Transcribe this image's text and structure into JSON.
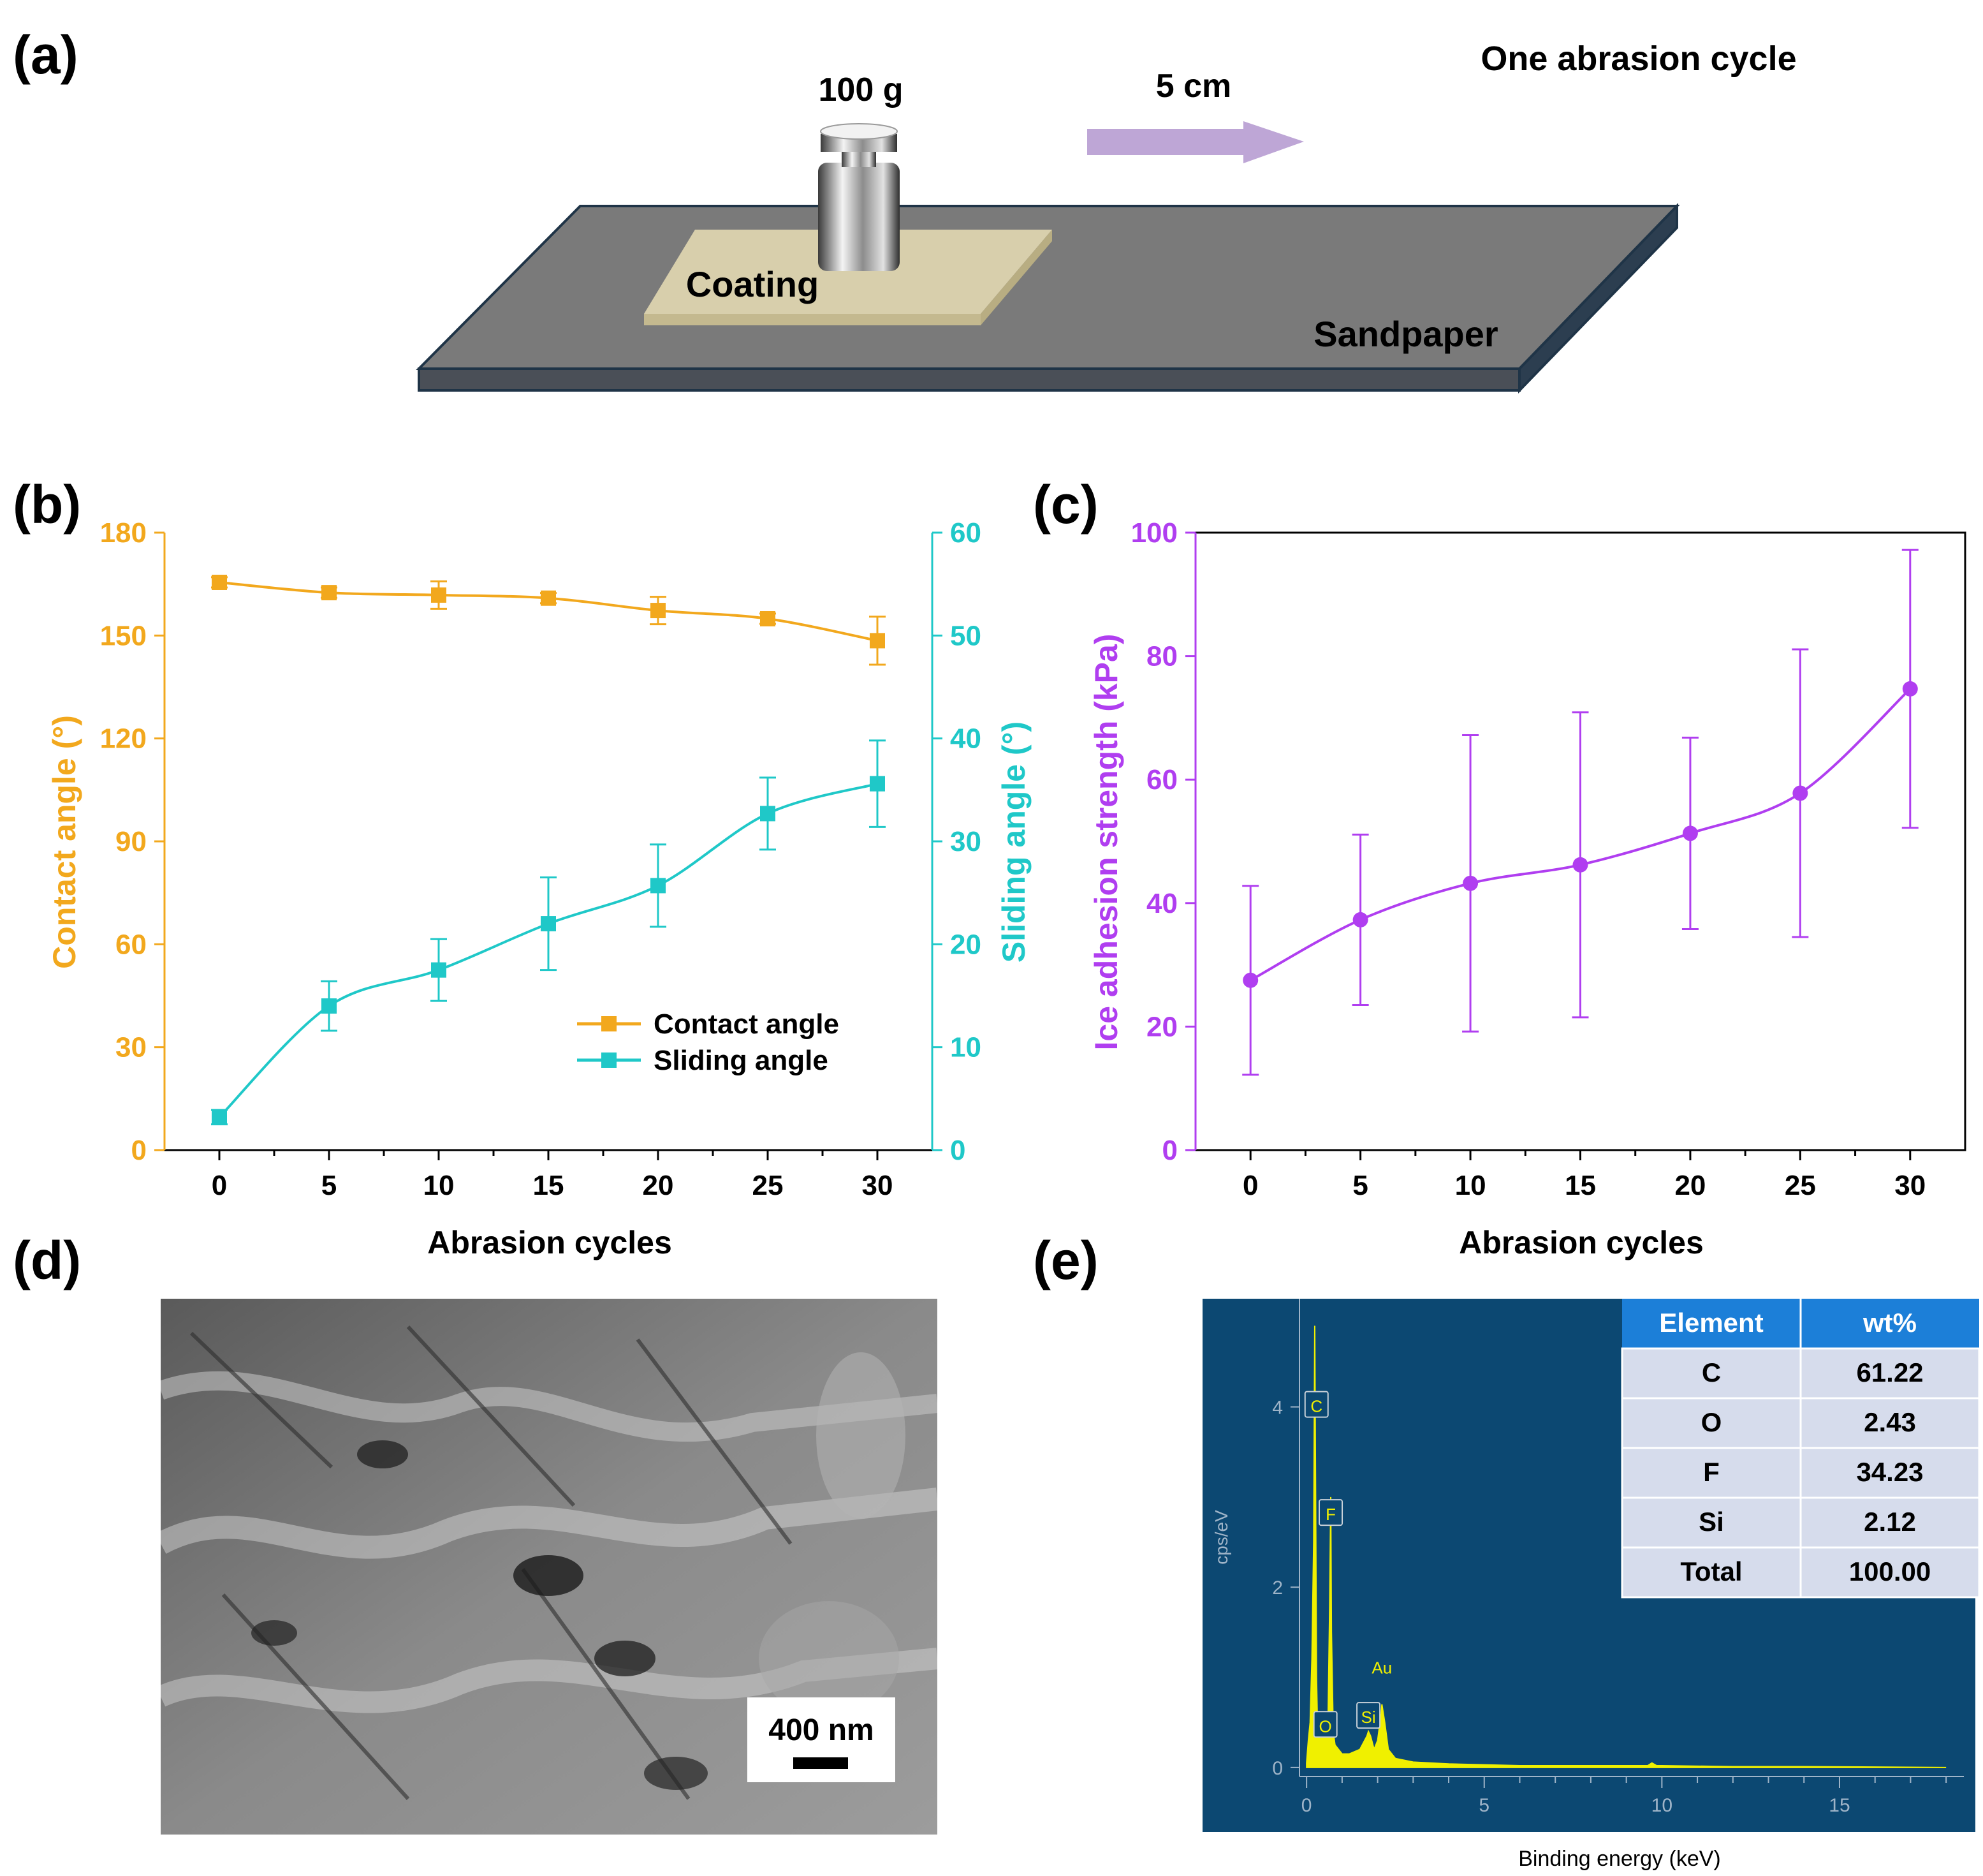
{
  "panel_labels": {
    "a": "(a)",
    "b": "(b)",
    "c": "(c)",
    "d": "(d)",
    "e": "(e)"
  },
  "schematic": {
    "weight_label": "100 g",
    "distance_label": "5 cm",
    "cycle_label": "One abrasion cycle",
    "coating_label": "Coating",
    "sandpaper_label": "Sandpaper",
    "colors": {
      "sandpaper": "#7a7a7a",
      "coating": "#d8cfac",
      "arrow": "#bea6d6"
    }
  },
  "sem": {
    "scale_bar_label": "400 nm"
  },
  "chart_data": [
    {
      "id": "b",
      "type": "line",
      "xlabel": "Abrasion cycles",
      "ylabel": "Contact angle (°)",
      "y2label": "Sliding angle (°)",
      "x": [
        0,
        5,
        10,
        15,
        20,
        25,
        30
      ],
      "xlim": [
        -2.5,
        32.5
      ],
      "ylim": [
        0,
        180
      ],
      "y2lim": [
        0,
        60
      ],
      "xticks": [
        "0",
        "5",
        "10",
        "15",
        "20",
        "25",
        "30"
      ],
      "yticks": [
        "0",
        "30",
        "60",
        "90",
        "120",
        "150",
        "180"
      ],
      "y2ticks": [
        "0",
        "10",
        "20",
        "30",
        "40",
        "50",
        "60"
      ],
      "legend_position": "lower-right",
      "series": [
        {
          "name": "Contact angle",
          "axis": "left",
          "color": "#f2a81d",
          "values": [
            165.5,
            162.5,
            161.8,
            160.9,
            157.3,
            154.9,
            148.5
          ],
          "errors": [
            1.5,
            1.5,
            4.0,
            1.5,
            4.0,
            1.5,
            7.0
          ]
        },
        {
          "name": "Sliding angle",
          "axis": "right",
          "color": "#1fc8c8",
          "values": [
            3.2,
            14.0,
            17.5,
            22.0,
            25.7,
            32.7,
            35.6
          ],
          "errors": [
            0.7,
            2.4,
            3.0,
            4.5,
            4.0,
            3.5,
            4.2
          ]
        }
      ]
    },
    {
      "id": "c",
      "type": "line",
      "xlabel": "Abrasion cycles",
      "ylabel": "Ice adhesion strength (kPa)",
      "x": [
        0,
        5,
        10,
        15,
        20,
        25,
        30
      ],
      "xlim": [
        -2.5,
        32.5
      ],
      "ylim": [
        0,
        100
      ],
      "xticks": [
        "0",
        "5",
        "10",
        "15",
        "20",
        "25",
        "30"
      ],
      "yticks": [
        "0",
        "20",
        "40",
        "60",
        "80",
        "100"
      ],
      "series": [
        {
          "name": "Ice adhesion strength",
          "axis": "left",
          "color": "#b03ef0",
          "values": [
            27.5,
            37.3,
            43.2,
            46.2,
            51.3,
            57.8,
            74.7
          ],
          "errors": [
            15.3,
            13.8,
            24.0,
            24.7,
            15.5,
            23.3,
            22.5
          ]
        }
      ]
    },
    {
      "id": "e",
      "type": "line",
      "xlabel": "Binding energy (keV)",
      "ylabel": "cps/eV",
      "xlim": [
        -0.2,
        18.5
      ],
      "ylim": [
        -0.1,
        5.2
      ],
      "xticks": [
        "0",
        "5",
        "10",
        "15"
      ],
      "yticks": [
        "0",
        "2",
        "4"
      ],
      "spectrum": {
        "x": [
          0,
          0.05,
          0.1,
          0.15,
          0.2,
          0.23,
          0.26,
          0.28,
          0.3,
          0.35,
          0.4,
          0.45,
          0.5,
          0.52,
          0.55,
          0.58,
          0.6,
          0.65,
          0.68,
          0.7,
          0.75,
          0.8,
          0.9,
          1.0,
          1.2,
          1.5,
          1.7,
          1.74,
          1.8,
          1.9,
          2.0,
          2.1,
          2.12,
          2.2,
          2.3,
          2.5,
          3,
          4,
          5,
          6,
          8,
          9.6,
          9.72,
          9.85,
          10,
          12,
          14,
          18
        ],
        "y": [
          0.05,
          0.3,
          0.5,
          1.2,
          2.5,
          4.9,
          2.6,
          1.0,
          0.6,
          0.5,
          0.4,
          0.3,
          0.45,
          0.55,
          0.45,
          0.35,
          0.4,
          1.8,
          3.0,
          1.5,
          0.4,
          0.25,
          0.2,
          0.15,
          0.15,
          0.2,
          0.35,
          0.4,
          0.35,
          0.2,
          0.3,
          0.6,
          0.7,
          0.5,
          0.2,
          0.1,
          0.06,
          0.04,
          0.03,
          0.02,
          0.02,
          0.02,
          0.05,
          0.02,
          0.02,
          0.01,
          0.01,
          0.0
        ],
        "color": "#f0f000"
      },
      "peak_labels": [
        {
          "label": "C",
          "x": 0.28,
          "y": 4.0
        },
        {
          "label": "F",
          "x": 0.68,
          "y": 2.8
        },
        {
          "label": "O",
          "x": 0.53,
          "y": 0.45
        },
        {
          "label": "Si",
          "x": 1.74,
          "y": 0.55
        },
        {
          "label": "Au",
          "x": 2.12,
          "y": 1.1
        }
      ],
      "table": {
        "headers": [
          "Element",
          "wt%"
        ],
        "rows": [
          [
            "C",
            "61.22"
          ],
          [
            "O",
            "2.43"
          ],
          [
            "F",
            "34.23"
          ],
          [
            "Si",
            "2.12"
          ],
          [
            "Total",
            "100.00"
          ]
        ]
      },
      "colors": {
        "background": "#0c4872",
        "table_header": "#1c7fd8",
        "table_row": "#d6dcec"
      }
    }
  ]
}
